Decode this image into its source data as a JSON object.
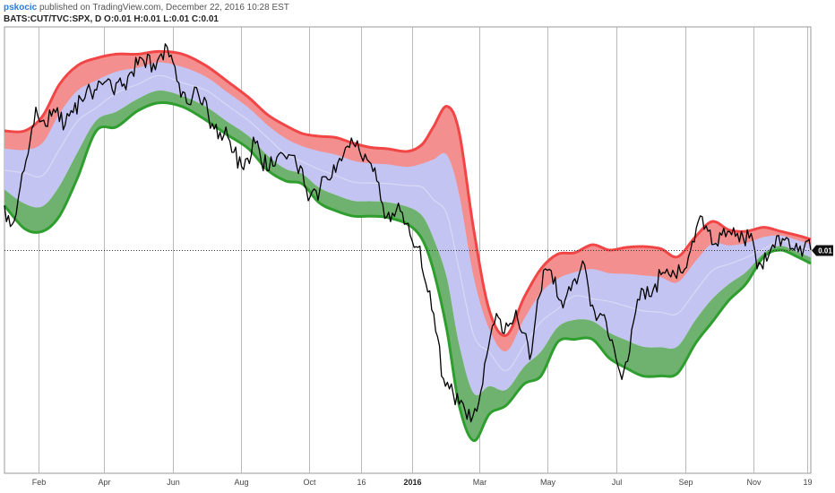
{
  "header": {
    "author": "pskocic",
    "published": "published on TradingView.com, December 22, 2016 10:28 EST",
    "symbol": "BATS:CUT/TVC:SPX, D",
    "ohlc": [
      {
        "k": "O:",
        "v": "0.01"
      },
      {
        "k": "H:",
        "v": "0.01"
      },
      {
        "k": "L:",
        "v": "0.01"
      },
      {
        "k": "C:",
        "v": "0.01"
      }
    ],
    "last_value": "0.01"
  },
  "colors": {
    "upper_band": "#f24545",
    "upper_fill": "#f48f8f",
    "middle_fill": "#c4c4f2",
    "lower_band": "#2e9e2e",
    "lower_fill": "#6fb26f",
    "price": "#000000",
    "grid": "#b9b9b9",
    "tag": "#111111"
  },
  "chart_data": {
    "type": "line",
    "title": "",
    "xlabel": "",
    "ylabel": "",
    "x_ticks": [
      {
        "label": "Feb",
        "date": "2015-02-01"
      },
      {
        "label": "Apr",
        "date": "2015-04-01"
      },
      {
        "label": "Jun",
        "date": "2015-06-01"
      },
      {
        "label": "Aug",
        "date": "2015-08-01"
      },
      {
        "label": "Oct",
        "date": "2015-10-01"
      },
      {
        "label": "16",
        "date": "2015-11-16"
      },
      {
        "label": "2016",
        "date": "2016-01-01",
        "bold": true
      },
      {
        "label": "Mar",
        "date": "2016-03-01"
      },
      {
        "label": "May",
        "date": "2016-05-01"
      },
      {
        "label": "Jul",
        "date": "2016-07-01"
      },
      {
        "label": "Sep",
        "date": "2016-09-01"
      },
      {
        "label": "Nov",
        "date": "2016-11-01"
      },
      {
        "label": "19",
        "date": "2016-12-19"
      }
    ],
    "x_range": [
      "2015-01-02",
      "2016-12-22"
    ],
    "y_range": [
      0,
      1
    ],
    "grid": true,
    "last_value_line": 0.5,
    "series": [
      {
        "role": "upper_band",
        "x": [
          "2015-01-02",
          "2015-01-20",
          "2015-02-05",
          "2015-02-20",
          "2015-03-08",
          "2015-03-25",
          "2015-04-12",
          "2015-05-01",
          "2015-05-20",
          "2015-06-10",
          "2015-07-01",
          "2015-07-20",
          "2015-08-08",
          "2015-08-25",
          "2015-09-10",
          "2015-09-25",
          "2015-10-10",
          "2015-10-25",
          "2015-11-10",
          "2015-11-25",
          "2015-12-10",
          "2015-12-28",
          "2016-01-10",
          "2016-01-20",
          "2016-02-01",
          "2016-02-12",
          "2016-02-25",
          "2016-03-10",
          "2016-03-25",
          "2016-04-10",
          "2016-04-25",
          "2016-05-10",
          "2016-05-25",
          "2016-06-10",
          "2016-06-25",
          "2016-07-10",
          "2016-07-25",
          "2016-08-10",
          "2016-08-25",
          "2016-09-10",
          "2016-09-25",
          "2016-10-10",
          "2016-10-25",
          "2016-11-10",
          "2016-11-25",
          "2016-12-10",
          "2016-12-22"
        ],
        "y": [
          0.767,
          0.767,
          0.8,
          0.871,
          0.913,
          0.93,
          0.939,
          0.939,
          0.945,
          0.939,
          0.913,
          0.878,
          0.842,
          0.803,
          0.779,
          0.761,
          0.755,
          0.752,
          0.739,
          0.73,
          0.727,
          0.721,
          0.737,
          0.776,
          0.822,
          0.764,
          0.545,
          0.364,
          0.309,
          0.394,
          0.458,
          0.491,
          0.494,
          0.512,
          0.5,
          0.506,
          0.508,
          0.503,
          0.485,
          0.53,
          0.564,
          0.545,
          0.542,
          0.551,
          0.542,
          0.533,
          0.524
        ]
      },
      {
        "role": "lower_band",
        "x": [
          "2015-01-02",
          "2015-01-20",
          "2015-02-05",
          "2015-02-20",
          "2015-03-08",
          "2015-03-25",
          "2015-04-12",
          "2015-05-01",
          "2015-05-20",
          "2015-06-10",
          "2015-07-01",
          "2015-07-20",
          "2015-08-08",
          "2015-08-25",
          "2015-09-10",
          "2015-09-25",
          "2015-10-10",
          "2015-10-25",
          "2015-11-10",
          "2015-11-25",
          "2015-12-10",
          "2015-12-28",
          "2016-01-10",
          "2016-01-20",
          "2016-02-01",
          "2016-02-12",
          "2016-02-25",
          "2016-03-10",
          "2016-03-25",
          "2016-04-10",
          "2016-04-25",
          "2016-05-10",
          "2016-05-25",
          "2016-06-10",
          "2016-06-25",
          "2016-07-10",
          "2016-07-25",
          "2016-08-10",
          "2016-08-25",
          "2016-09-10",
          "2016-09-25",
          "2016-10-10",
          "2016-10-25",
          "2016-11-10",
          "2016-11-25",
          "2016-12-10",
          "2016-12-22"
        ],
        "y": [
          0.6,
          0.548,
          0.542,
          0.576,
          0.661,
          0.767,
          0.776,
          0.812,
          0.83,
          0.821,
          0.791,
          0.758,
          0.727,
          0.679,
          0.655,
          0.648,
          0.606,
          0.588,
          0.576,
          0.576,
          0.573,
          0.558,
          0.524,
          0.455,
          0.321,
          0.152,
          0.073,
          0.133,
          0.152,
          0.2,
          0.218,
          0.294,
          0.3,
          0.3,
          0.258,
          0.236,
          0.218,
          0.218,
          0.224,
          0.291,
          0.339,
          0.388,
          0.424,
          0.485,
          0.5,
          0.485,
          0.47
        ]
      },
      {
        "role": "midline",
        "x": [
          "2015-01-02",
          "2015-02-05",
          "2015-03-08",
          "2015-04-12",
          "2015-05-20",
          "2015-07-01",
          "2015-08-08",
          "2015-09-10",
          "2015-10-10",
          "2015-11-10",
          "2015-12-10",
          "2016-01-10",
          "2016-02-01",
          "2016-02-25",
          "2016-03-25",
          "2016-04-25",
          "2016-05-25",
          "2016-06-25",
          "2016-07-25",
          "2016-08-25",
          "2016-09-25",
          "2016-10-25",
          "2016-11-25",
          "2016-12-22"
        ],
        "y": [
          0.679,
          0.667,
          0.788,
          0.852,
          0.891,
          0.858,
          0.79,
          0.715,
          0.681,
          0.652,
          0.649,
          0.641,
          0.58,
          0.309,
          0.23,
          0.339,
          0.397,
          0.385,
          0.364,
          0.358,
          0.454,
          0.483,
          0.521,
          0.5
        ]
      },
      {
        "role": "price",
        "x": [
          "2015-01-02",
          "2015-01-09",
          "2015-01-16",
          "2015-01-23",
          "2015-01-30",
          "2015-02-06",
          "2015-02-13",
          "2015-02-20",
          "2015-02-27",
          "2015-03-06",
          "2015-03-13",
          "2015-03-20",
          "2015-03-27",
          "2015-04-03",
          "2015-04-10",
          "2015-04-17",
          "2015-04-24",
          "2015-05-01",
          "2015-05-08",
          "2015-05-15",
          "2015-05-22",
          "2015-05-29",
          "2015-06-05",
          "2015-06-12",
          "2015-06-19",
          "2015-06-26",
          "2015-07-03",
          "2015-07-10",
          "2015-07-17",
          "2015-07-24",
          "2015-07-31",
          "2015-08-07",
          "2015-08-14",
          "2015-08-21",
          "2015-08-28",
          "2015-09-04",
          "2015-09-11",
          "2015-09-18",
          "2015-09-25",
          "2015-10-02",
          "2015-10-09",
          "2015-10-16",
          "2015-10-23",
          "2015-10-30",
          "2015-11-06",
          "2015-11-13",
          "2015-11-20",
          "2015-11-27",
          "2015-12-04",
          "2015-12-11",
          "2015-12-18",
          "2015-12-25",
          "2016-01-01",
          "2016-01-08",
          "2016-01-15",
          "2016-01-22",
          "2016-01-29",
          "2016-02-05",
          "2016-02-12",
          "2016-02-19",
          "2016-02-26",
          "2016-03-04",
          "2016-03-11",
          "2016-03-18",
          "2016-03-25",
          "2016-04-01",
          "2016-04-08",
          "2016-04-15",
          "2016-04-22",
          "2016-04-29",
          "2016-05-06",
          "2016-05-13",
          "2016-05-20",
          "2016-05-27",
          "2016-06-03",
          "2016-06-10",
          "2016-06-17",
          "2016-06-24",
          "2016-07-01",
          "2016-07-08",
          "2016-07-15",
          "2016-07-22",
          "2016-07-29",
          "2016-08-05",
          "2016-08-12",
          "2016-08-19",
          "2016-08-26",
          "2016-09-02",
          "2016-09-09",
          "2016-09-16",
          "2016-09-23",
          "2016-09-30",
          "2016-10-07",
          "2016-10-14",
          "2016-10-21",
          "2016-10-28",
          "2016-11-04",
          "2016-11-11",
          "2016-11-18",
          "2016-11-25",
          "2016-12-02",
          "2016-12-09",
          "2016-12-16",
          "2016-12-22"
        ],
        "y": [
          0.6,
          0.558,
          0.64,
          0.715,
          0.82,
          0.791,
          0.8,
          0.788,
          0.806,
          0.83,
          0.833,
          0.855,
          0.879,
          0.879,
          0.848,
          0.867,
          0.897,
          0.915,
          0.909,
          0.918,
          0.94,
          0.933,
          0.879,
          0.852,
          0.845,
          0.83,
          0.803,
          0.782,
          0.758,
          0.719,
          0.709,
          0.706,
          0.739,
          0.678,
          0.709,
          0.715,
          0.704,
          0.712,
          0.682,
          0.62,
          0.612,
          0.664,
          0.691,
          0.7,
          0.73,
          0.745,
          0.715,
          0.676,
          0.612,
          0.585,
          0.59,
          0.558,
          0.521,
          0.509,
          0.406,
          0.318,
          0.212,
          0.2,
          0.155,
          0.121,
          0.145,
          0.2,
          0.309,
          0.349,
          0.337,
          0.346,
          0.315,
          0.255,
          0.388,
          0.458,
          0.424,
          0.387,
          0.418,
          0.424,
          0.467,
          0.377,
          0.358,
          0.309,
          0.258,
          0.23,
          0.321,
          0.388,
          0.418,
          0.424,
          0.45,
          0.44,
          0.467,
          0.461,
          0.518,
          0.575,
          0.545,
          0.509,
          0.53,
          0.55,
          0.542,
          0.527,
          0.458,
          0.494,
          0.512,
          0.509,
          0.525,
          0.515,
          0.505,
          0.5
        ]
      }
    ]
  }
}
